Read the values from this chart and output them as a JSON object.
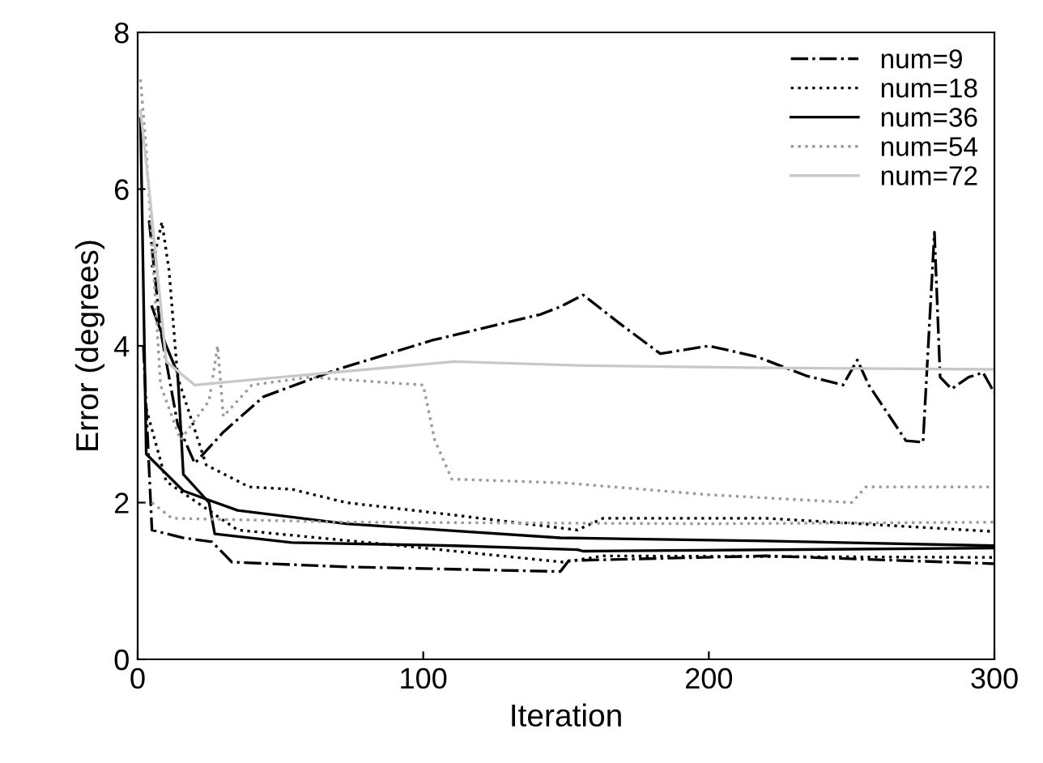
{
  "chart_data": {
    "type": "line",
    "xlabel": "Iteration",
    "ylabel": "Error (degrees)",
    "xlim": [
      0,
      300
    ],
    "ylim": [
      0,
      8
    ],
    "xticks": [
      0,
      100,
      200,
      300
    ],
    "yticks": [
      0,
      2,
      4,
      6,
      8
    ],
    "grid": false,
    "legend": "top right",
    "marker": "none",
    "series": [
      {
        "name": "num=9",
        "color": "#000000",
        "line_style": "dashdot",
        "x": [
          4,
          8,
          14,
          20,
          30,
          44,
          70,
          103,
          141,
          148,
          156,
          169,
          183,
          200,
          217,
          234,
          247,
          252,
          256,
          269,
          275,
          279,
          281,
          285,
          291,
          296,
          300
        ],
        "values": [
          5.6,
          4.2,
          3.0,
          2.5,
          2.9,
          3.35,
          3.7,
          4.07,
          4.4,
          4.5,
          4.65,
          4.28,
          3.9,
          4.0,
          3.86,
          3.62,
          3.5,
          3.82,
          3.5,
          2.79,
          2.77,
          5.45,
          3.6,
          3.45,
          3.6,
          3.66,
          3.4
        ]
      },
      {
        "color": "#000000",
        "line_style": "dashdot",
        "x": [
          2,
          5,
          16,
          26,
          33,
          73,
          148,
          151,
          220,
          300
        ],
        "values": [
          4.0,
          1.65,
          1.55,
          1.5,
          1.24,
          1.18,
          1.12,
          1.26,
          1.32,
          1.22
        ]
      },
      {
        "name": "num=18",
        "color": "#000000",
        "line_style": "dotted",
        "x": [
          5,
          8.5,
          11,
          14,
          24,
          39,
          54,
          73,
          111,
          154,
          163,
          220,
          300
        ],
        "values": [
          5.0,
          5.58,
          4.96,
          3.6,
          2.48,
          2.2,
          2.17,
          2.0,
          1.84,
          1.65,
          1.8,
          1.8,
          1.63
        ]
      },
      {
        "color": "#000000",
        "line_style": "dotted",
        "x": [
          3,
          10,
          35,
          92,
          149,
          163,
          300
        ],
        "values": [
          3.2,
          2.27,
          1.65,
          1.45,
          1.24,
          1.32,
          1.3
        ]
      },
      {
        "name": "num=36",
        "color": "#000000",
        "line_style": "solid",
        "x": [
          1,
          3,
          16,
          35,
          73,
          148,
          220,
          300
        ],
        "values": [
          6.9,
          2.62,
          2.15,
          1.9,
          1.73,
          1.55,
          1.51,
          1.45
        ]
      },
      {
        "color": "#000000",
        "line_style": "solid",
        "x": [
          5,
          10,
          14,
          16,
          25,
          27,
          54,
          111,
          154,
          156,
          300
        ],
        "values": [
          4.5,
          4.0,
          3.65,
          2.36,
          2.0,
          1.6,
          1.49,
          1.45,
          1.4,
          1.38,
          1.42
        ]
      },
      {
        "name": "num=54",
        "color": "#9a9a9a",
        "line_style": "dotted",
        "x": [
          1,
          3,
          8,
          15,
          25,
          28,
          30,
          40,
          60,
          80,
          100,
          104,
          110,
          150,
          200,
          250,
          255,
          300
        ],
        "values": [
          7.4,
          6.5,
          3.5,
          2.8,
          3.3,
          4.0,
          3.1,
          3.5,
          3.6,
          3.55,
          3.5,
          2.8,
          2.3,
          2.25,
          2.1,
          2.0,
          2.2,
          2.2
        ]
      },
      {
        "color": "#9a9a9a",
        "line_style": "dotted",
        "x": [
          5,
          12,
          73,
          200,
          300
        ],
        "values": [
          2.0,
          1.8,
          1.75,
          1.73,
          1.75
        ]
      },
      {
        "name": "num=72",
        "color": "#c8c8c8",
        "line_style": "solid",
        "x": [
          1,
          4,
          10,
          20,
          50,
          111,
          154,
          220,
          300
        ],
        "values": [
          7.0,
          6.0,
          3.8,
          3.5,
          3.6,
          3.8,
          3.75,
          3.72,
          3.7
        ]
      }
    ]
  }
}
